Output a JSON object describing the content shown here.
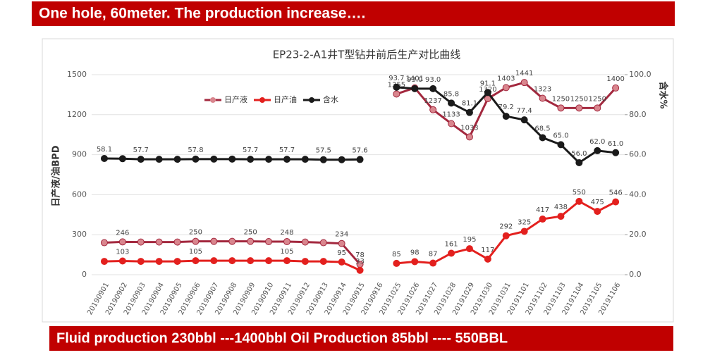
{
  "header": {
    "title": "One hole, 60meter. The production increase…."
  },
  "footer": {
    "text": "Fluid production 230bbl ---1400bbl Oil Production 85bbl ---- 550BBL"
  },
  "chart_data": {
    "type": "line",
    "title": "EP23-2-A1井T型钻井前后生产对比曲线",
    "ylabel": "日产液/油BPD",
    "y2label": "含水%",
    "categories": [
      "20190901",
      "20190902",
      "20190903",
      "20190904",
      "20190905",
      "20190906",
      "20190907",
      "20190908",
      "20190909",
      "20190910",
      "20190911",
      "20190912",
      "20190913",
      "20190914",
      "20190915",
      "20190916",
      "20191025",
      "20191026",
      "20191027",
      "20191028",
      "20191029",
      "20191030",
      "20191031",
      "20191101",
      "20191102",
      "20191103",
      "20191104",
      "20191105",
      "20191106"
    ],
    "ylim": [
      0,
      1500
    ],
    "yticks": [
      0,
      300,
      600,
      900,
      1200,
      1500
    ],
    "y2lim": [
      0,
      100
    ],
    "y2ticks": [
      {
        "value": 0,
        "label": "0.0"
      },
      {
        "value": 20,
        "label": "20.0"
      },
      {
        "value": 40,
        "label": "40.0"
      },
      {
        "value": 60,
        "label": "60.0"
      },
      {
        "value": 80,
        "label": "80.0"
      },
      {
        "value": 100,
        "label": "100.0"
      }
    ],
    "grid": true,
    "legend": "top-left",
    "series": [
      {
        "name": "日产液",
        "color": "#a3283e",
        "marker_color": "#d9868e",
        "values": [
          240,
          246,
          245,
          245,
          245,
          250,
          250,
          250,
          250,
          248,
          248,
          245,
          240,
          234,
          78,
          null,
          1355,
          1401,
          1237,
          1133,
          1033,
          1320,
          1403,
          1441,
          1323,
          1250,
          1250,
          1250,
          1400
        ],
        "value_labels": [
          null,
          "246",
          null,
          null,
          null,
          "250",
          null,
          null,
          "250",
          null,
          "248",
          null,
          null,
          "234",
          "78",
          null,
          "1355",
          "1401",
          "1237",
          "1133",
          "1033",
          "1320",
          "1403",
          "1441",
          "1323",
          "1250",
          "1250",
          "1250",
          "1400"
        ]
      },
      {
        "name": "日产油",
        "color": "#e3201e",
        "marker_color": "#e3201e",
        "values": [
          100,
          103,
          100,
          100,
          100,
          105,
          105,
          105,
          105,
          105,
          105,
          100,
          100,
          95,
          33,
          null,
          85,
          98,
          87,
          161,
          195,
          117,
          292,
          325,
          417,
          438,
          550,
          475,
          546
        ],
        "value_labels": [
          null,
          "103",
          null,
          null,
          null,
          "105",
          null,
          null,
          null,
          null,
          "105",
          null,
          null,
          "95",
          "33",
          null,
          "85",
          "98",
          "87",
          "161",
          "195",
          "117",
          "292",
          "325",
          "417",
          "438",
          "550",
          "475",
          "546"
        ]
      },
      {
        "name": "含水",
        "color": "#1a1a1a",
        "marker_color": "#1a1a1a",
        "axis": "y2",
        "values": [
          58.1,
          58.0,
          57.7,
          57.7,
          57.7,
          57.8,
          57.8,
          57.8,
          57.7,
          57.7,
          57.7,
          57.7,
          57.5,
          57.5,
          57.6,
          null,
          93.7,
          93.0,
          93.0,
          85.8,
          81.1,
          91.1,
          79.2,
          77.4,
          68.5,
          65.0,
          56.0,
          62.0,
          61.0
        ],
        "value_labels": [
          "58.1",
          null,
          "57.7",
          null,
          null,
          "57.8",
          null,
          null,
          "57.7",
          null,
          "57.7",
          null,
          "57.5",
          null,
          "57.6",
          null,
          "93.7",
          "93.0",
          "93.0",
          "85.8",
          "81.1",
          "91.1",
          "79.2",
          "77.4",
          "68.5",
          "65.0",
          "56.0",
          "62.0",
          "61.0"
        ]
      }
    ]
  }
}
